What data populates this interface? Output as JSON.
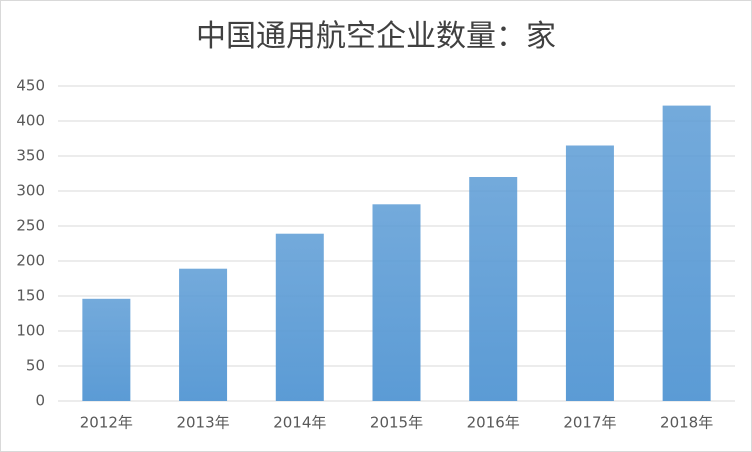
{
  "chart_data": {
    "type": "bar",
    "title": "中国通用航空企业数量：家",
    "categories": [
      "2012年",
      "2013年",
      "2014年",
      "2015年",
      "2016年",
      "2017年",
      "2018年"
    ],
    "values": [
      146,
      189,
      239,
      281,
      320,
      365,
      422
    ],
    "color": "#5b9bd5",
    "ylim": [
      0,
      450
    ],
    "yticks": [
      0,
      50,
      100,
      150,
      200,
      250,
      300,
      350,
      400,
      450
    ],
    "grid": true
  }
}
